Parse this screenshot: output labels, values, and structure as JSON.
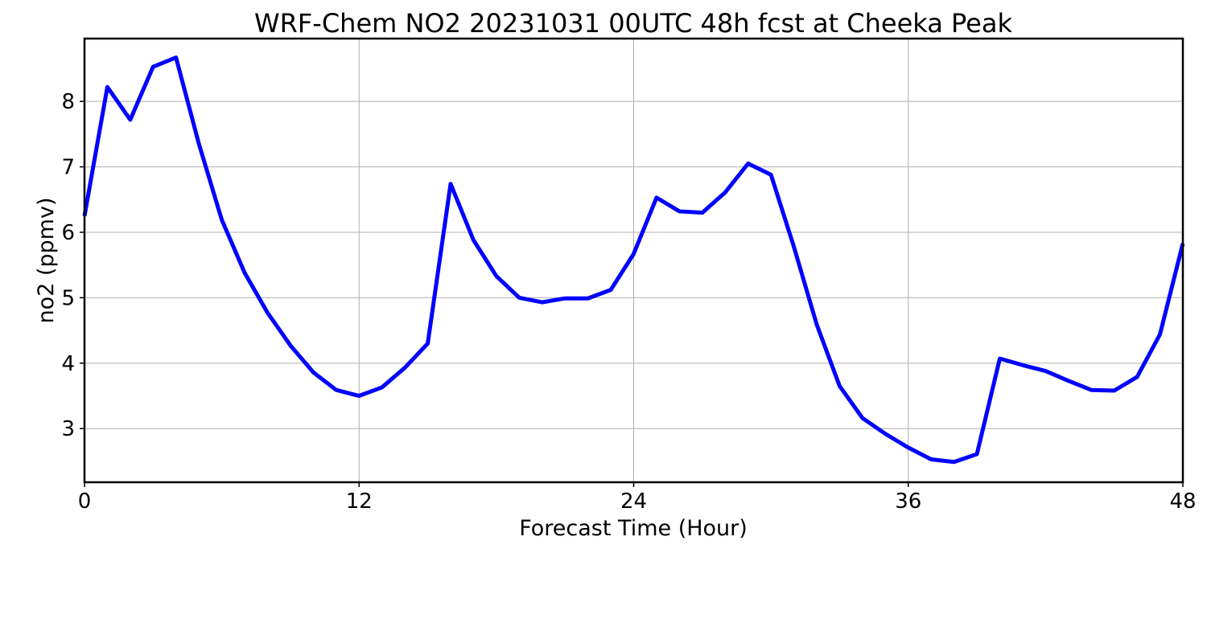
{
  "chart_data": {
    "type": "line",
    "title": "WRF-Chem NO2  20231031 00UTC 48h fcst at Cheeka Peak",
    "xlabel": "Forecast Time (Hour)",
    "ylabel": "no2  (ppmv)",
    "xlim": [
      0,
      48
    ],
    "ylim": [
      2.18,
      8.96
    ],
    "xticks": [
      0,
      12,
      24,
      36,
      48
    ],
    "yticks": [
      3,
      4,
      5,
      6,
      7,
      8
    ],
    "grid": true,
    "series": [
      {
        "color": "#0000ff",
        "x": [
          0,
          1,
          2,
          3,
          4,
          5,
          6,
          7,
          8,
          9,
          10,
          11,
          12,
          13,
          14,
          15,
          16,
          17,
          18,
          19,
          20,
          21,
          22,
          23,
          24,
          25,
          26,
          27,
          28,
          29,
          30,
          31,
          32,
          33,
          34,
          35,
          36,
          37,
          38,
          39,
          40,
          41,
          42,
          43,
          44,
          45,
          46,
          47,
          48
        ],
        "y": [
          6.25,
          8.22,
          7.72,
          8.53,
          8.67,
          7.35,
          6.19,
          5.38,
          4.77,
          4.27,
          3.86,
          3.59,
          3.5,
          3.63,
          3.93,
          4.3,
          6.74,
          5.88,
          5.33,
          5.0,
          4.93,
          4.99,
          4.99,
          5.12,
          5.67,
          6.53,
          6.32,
          6.3,
          6.61,
          7.05,
          6.88,
          5.78,
          4.59,
          3.65,
          3.16,
          2.92,
          2.71,
          2.53,
          2.49,
          2.61,
          4.07,
          3.97,
          3.88,
          3.73,
          3.59,
          3.58,
          3.79,
          4.44,
          5.83
        ]
      }
    ]
  }
}
